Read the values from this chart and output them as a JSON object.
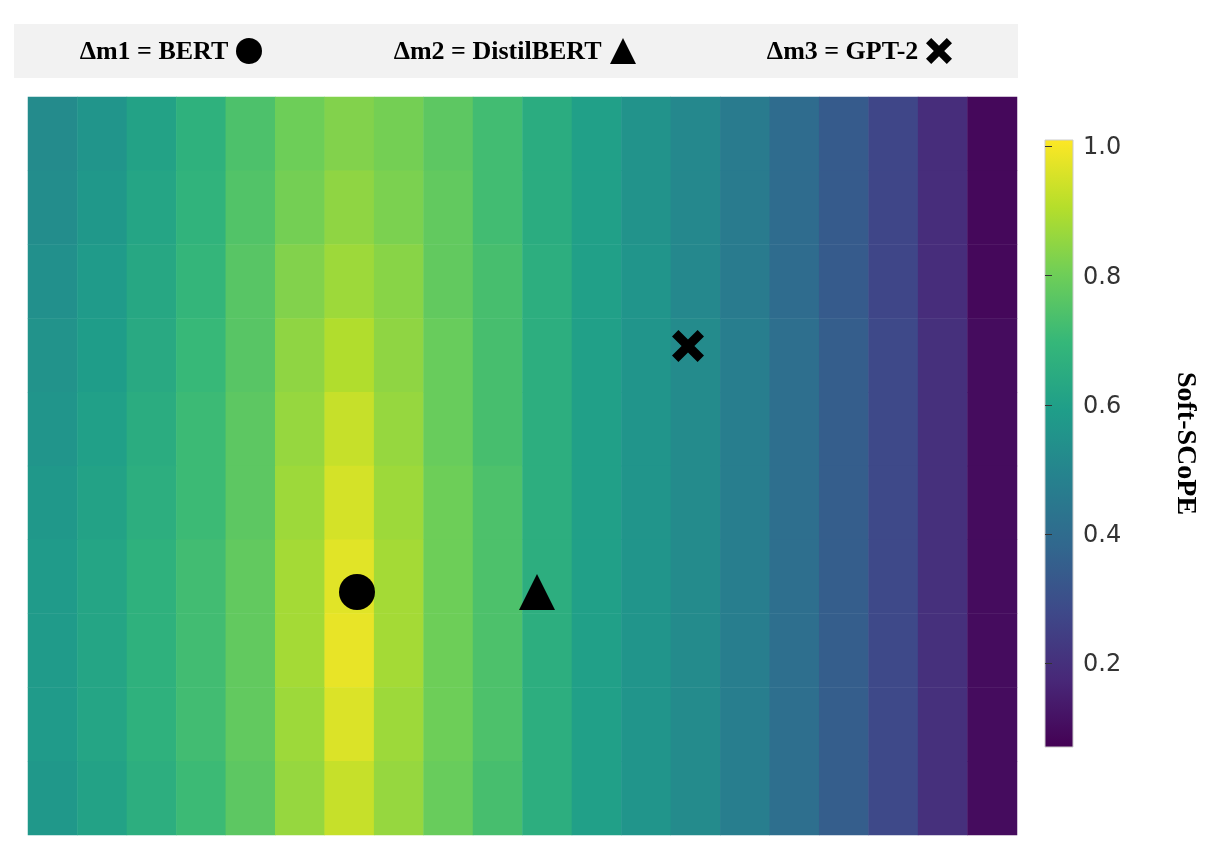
{
  "chart_data": {
    "type": "heatmap",
    "categories": [
      null,
      null,
      null,
      null,
      null,
      null,
      null,
      null,
      null,
      null,
      null,
      null,
      null,
      null,
      null,
      null,
      null,
      null,
      null,
      null
    ],
    "y_categories": [
      null,
      null,
      null,
      null,
      null,
      null,
      null,
      null,
      null,
      null
    ],
    "cells": [
      [
        0.52,
        0.56,
        0.61,
        0.67,
        0.74,
        0.8,
        0.83,
        0.81,
        0.77,
        0.72,
        0.65,
        0.6,
        0.55,
        0.51,
        0.46,
        0.4,
        0.34,
        0.27,
        0.19,
        0.09
      ],
      [
        0.53,
        0.57,
        0.62,
        0.68,
        0.75,
        0.81,
        0.85,
        0.82,
        0.78,
        0.72,
        0.65,
        0.6,
        0.55,
        0.51,
        0.46,
        0.4,
        0.34,
        0.27,
        0.19,
        0.09
      ],
      [
        0.54,
        0.58,
        0.63,
        0.69,
        0.76,
        0.83,
        0.87,
        0.84,
        0.78,
        0.73,
        0.66,
        0.6,
        0.56,
        0.51,
        0.46,
        0.4,
        0.34,
        0.27,
        0.19,
        0.09
      ],
      [
        0.55,
        0.59,
        0.64,
        0.7,
        0.76,
        0.85,
        0.9,
        0.85,
        0.79,
        0.73,
        0.66,
        0.6,
        0.56,
        0.52,
        0.47,
        0.41,
        0.35,
        0.28,
        0.2,
        0.1
      ],
      [
        0.56,
        0.6,
        0.65,
        0.71,
        0.77,
        0.86,
        0.93,
        0.86,
        0.79,
        0.73,
        0.66,
        0.6,
        0.56,
        0.52,
        0.47,
        0.41,
        0.35,
        0.28,
        0.2,
        0.1
      ],
      [
        0.57,
        0.61,
        0.66,
        0.71,
        0.77,
        0.87,
        0.95,
        0.87,
        0.8,
        0.74,
        0.66,
        0.6,
        0.56,
        0.52,
        0.47,
        0.41,
        0.35,
        0.28,
        0.2,
        0.1
      ],
      [
        0.58,
        0.62,
        0.67,
        0.72,
        0.78,
        0.88,
        0.97,
        0.88,
        0.8,
        0.74,
        0.66,
        0.6,
        0.56,
        0.52,
        0.47,
        0.41,
        0.35,
        0.28,
        0.2,
        0.1
      ],
      [
        0.58,
        0.62,
        0.67,
        0.72,
        0.78,
        0.88,
        0.98,
        0.88,
        0.8,
        0.74,
        0.66,
        0.6,
        0.56,
        0.52,
        0.47,
        0.41,
        0.35,
        0.28,
        0.2,
        0.1
      ],
      [
        0.58,
        0.62,
        0.67,
        0.72,
        0.78,
        0.87,
        0.96,
        0.87,
        0.8,
        0.74,
        0.66,
        0.6,
        0.56,
        0.52,
        0.47,
        0.41,
        0.35,
        0.28,
        0.2,
        0.1
      ],
      [
        0.57,
        0.61,
        0.66,
        0.71,
        0.77,
        0.86,
        0.93,
        0.86,
        0.79,
        0.73,
        0.66,
        0.6,
        0.56,
        0.52,
        0.47,
        0.41,
        0.35,
        0.28,
        0.2,
        0.1
      ]
    ],
    "clim": [
      0.07,
      1.01
    ],
    "cticks": [
      0.2,
      0.4,
      0.6,
      0.8,
      {
        "value": 1,
        "label": "1.0"
      }
    ],
    "clabel": "Soft-SCoPE",
    "tick_labels": false,
    "annotations": [
      "Δm1 = BERT",
      "Δm2 = DistilBERT",
      "Δm3 = GPT-2"
    ]
  }
}
